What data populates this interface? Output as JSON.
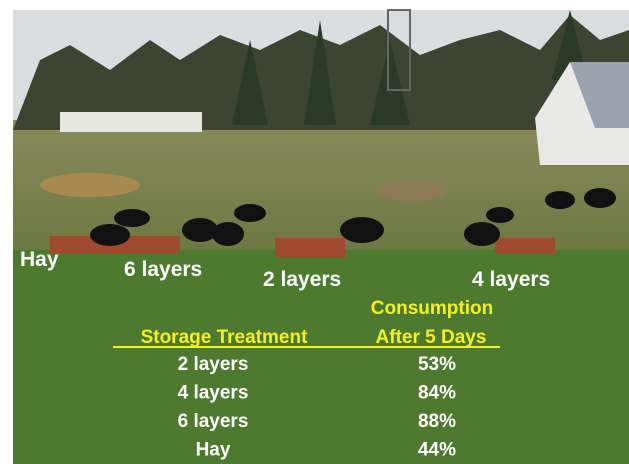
{
  "photo_labels": [
    "Hay",
    "6 layers",
    "2 layers",
    "4 layers"
  ],
  "table": {
    "header": {
      "treatment": "Storage Treatment",
      "consumption": [
        "Consumption",
        "After 5 Days"
      ]
    },
    "rows": [
      [
        "2 layers",
        "53%"
      ],
      [
        "4 layers",
        "84%"
      ],
      [
        "6 layers",
        "88%"
      ],
      [
        "Hay",
        "44%"
      ]
    ]
  }
}
